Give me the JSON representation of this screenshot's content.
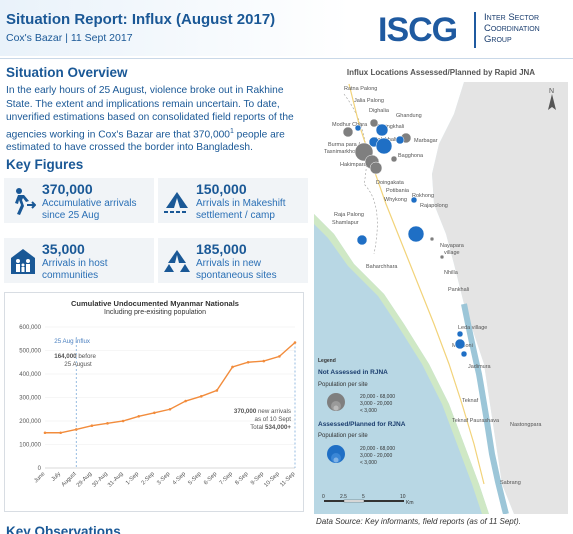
{
  "header": {
    "title": "Situation Report: Influx (August 2017)",
    "subtitle": "Cox's Bazar | 11 Sept 2017",
    "logo_text": "ISCG",
    "logo_line1": "Inter Sector",
    "logo_line2": "Coordination",
    "logo_line3": "Group"
  },
  "overview": {
    "title": "Situation Overview",
    "text_before_sup": "In the early hours of 25 August, violence broke out in Rakhine State. The extent and implications remain uncertain. To date, unverified estimations based on consolidated field reports of the agencies working in Cox's Bazar are that 370,000",
    "sup": "1",
    "text_after_sup": " people are estimated to have crossed the border into Bangladesh."
  },
  "key_figures": {
    "title": "Key Figures",
    "cards": [
      {
        "number": "370,000",
        "label": "Accumulative arrivals since 25 Aug",
        "icon": "walking-person-icon"
      },
      {
        "number": "150,000",
        "label": "Arrivals in Makeshift settlement / camp",
        "icon": "tent-icon"
      },
      {
        "number": "35,000",
        "label": "Arrivals in host communities",
        "icon": "family-house-icon"
      },
      {
        "number": "185,000",
        "label": "Arrivals in new spontaneous sites",
        "icon": "tents-icon"
      }
    ]
  },
  "chart_data": {
    "type": "line",
    "title": "Cumulative Undocumented Myanmar Nationals",
    "subtitle": "Including pre-exisiting population",
    "categories": [
      "June",
      "July",
      "August",
      "29-Aug",
      "30-Aug",
      "31-Aug",
      "1-Sep",
      "2-Sep",
      "3-Sep",
      "4-Sep",
      "5-Sep",
      "6-Sep",
      "7-Sep",
      "8-Sep",
      "9-Sep",
      "10-Sep",
      "11-Sep"
    ],
    "series": [
      {
        "values": [
          150000,
          150000,
          164000,
          180000,
          190000,
          200000,
          220000,
          235000,
          250000,
          285000,
          305000,
          330000,
          430000,
          450000,
          455000,
          475000,
          534000
        ],
        "color": "#f28c3c"
      }
    ],
    "ylim": [
      0,
      600000
    ],
    "yticks": [
      "0",
      "100,000",
      "200,000",
      "300,000",
      "400,000",
      "500,000",
      "600,000"
    ],
    "annotations": {
      "influx_label": "25 Aug Influx",
      "before_bold": "164,000",
      "before_rest1": " before",
      "before_rest2": "25 August",
      "new_bold": "370,000",
      "new_rest1": " new arrivals",
      "new_rest2": "as of 10 Sept",
      "total_prefix": "Total ",
      "total_bold": "534,000+"
    }
  },
  "map": {
    "title": "Influx Locations Assessed/Planned by Rapid JNA",
    "source": "Data Source: Key informants, field reports (as of 11 Sept).",
    "north": "N",
    "legend": {
      "title": "Legend",
      "not_assessed": "Not Assessed in RJNA",
      "assessed": "Assessed/Planned for RJNA",
      "pop_label": "Population per site",
      "sizes": [
        "20,000 - 68,000",
        "3,000 - 20,000",
        "< 3,000"
      ]
    },
    "scale": {
      "s0": "0",
      "s1": "2.5",
      "s2": "5",
      "s3": "10",
      "unit": "Km"
    },
    "places": {
      "ratna": "Ratna Palong",
      "jalia": "Jalia Palong",
      "ghandung": "Ghandung",
      "dighalia": "Dighalia",
      "modhur": "Modhur Chara",
      "thaingkhali": "Thaingkhali",
      "burma": "Burma para /",
      "tasnimarkhola": "Tasnimarkhola",
      "bagghona": "Bagghona",
      "hakimpara": "Hakimpara",
      "balukhali": "Balukhali",
      "potibania": "Potibania",
      "maheshkhali": "Marbagar",
      "doingakata": "Doingakata",
      "whykong": "Whykong",
      "rajapalong": "Raja Palong",
      "shamlapur": "Shamlapur",
      "baharchhara": "Baharchhara",
      "nayapara": "Nayapara",
      "village": "village",
      "nhilla": "Nhilla",
      "pankhali": "Pankhali",
      "leda": "Leda village",
      "mochoni": "Mochoni",
      "jadimura": "Jadimura",
      "teknaf": "Teknaf",
      "paurashava": "Teknaf Paurashava",
      "nastongpara": "Nastongpara",
      "sabrang": "Sabrang",
      "rokhong": "Rokhong",
      "rajapolong2": "Rajapolong"
    }
  }
}
